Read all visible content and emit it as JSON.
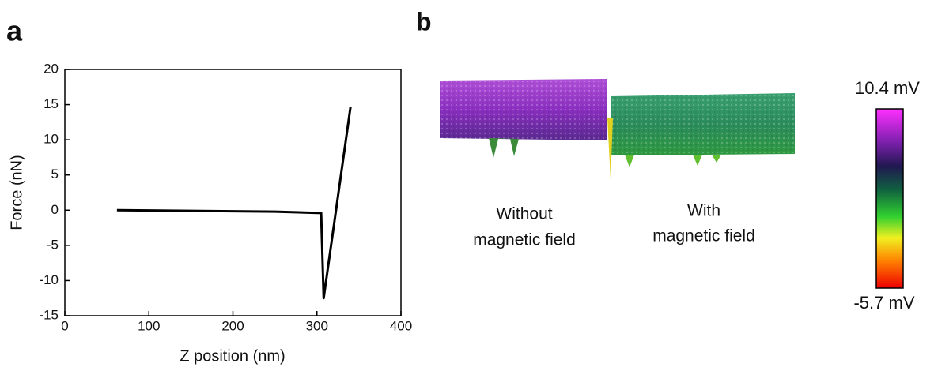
{
  "chart_data": {
    "type": "line",
    "xlabel": "Z position (nm)",
    "ylabel": "Force (nN)",
    "x": [
      62,
      150,
      250,
      305,
      308,
      340
    ],
    "values": [
      0,
      -0.1,
      -0.2,
      -0.4,
      -12.5,
      14.7
    ],
    "color": "#000000",
    "xlim": [
      0,
      400
    ],
    "xticks": [
      0,
      100,
      200,
      300,
      400
    ],
    "ylim": [
      -15,
      20
    ],
    "yticks": [
      -15,
      -10,
      -5,
      0,
      5,
      10,
      15,
      20
    ]
  },
  "panel_labels": [
    "a",
    "b"
  ],
  "panel_b": {
    "captions": [
      [
        "Without",
        "magnetic field"
      ],
      [
        "With",
        "magnetic field"
      ]
    ],
    "colorbar": {
      "max_label": "10.4 mV",
      "min_label": "-5.7 mV"
    }
  }
}
